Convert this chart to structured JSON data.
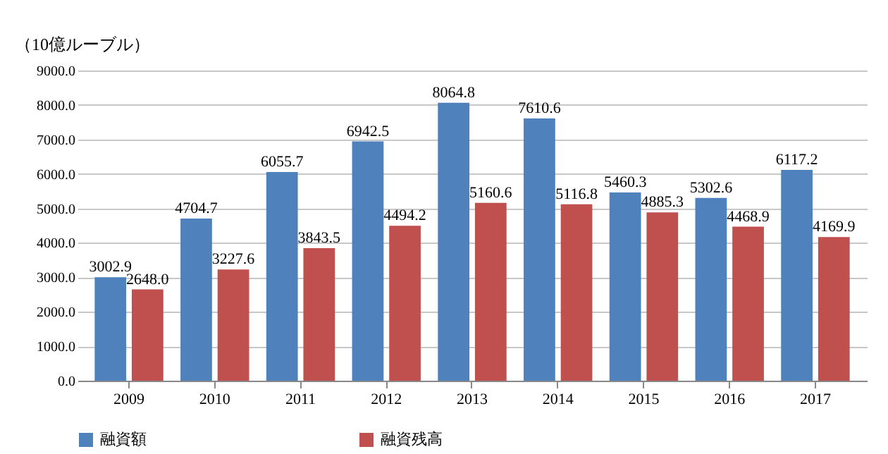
{
  "chart_data": {
    "type": "bar",
    "ylabel": "（10億ルーブル）",
    "categories": [
      "2009",
      "2010",
      "2011",
      "2012",
      "2013",
      "2014",
      "2015",
      "2016",
      "2017"
    ],
    "series": [
      {
        "name": "融資額",
        "color": "#4f81bd",
        "values": [
          3002.9,
          4704.7,
          6055.7,
          6942.5,
          8064.8,
          7610.6,
          5460.3,
          5302.6,
          6117.2
        ],
        "value_labels": [
          "3002.9",
          "4704.7",
          "6055.7",
          "6942.5",
          "8064.8",
          "7610.6",
          "5460.3",
          "5302.6",
          "6117.2"
        ]
      },
      {
        "name": "融資残高",
        "color": "#c0504d",
        "values": [
          2648,
          3227.6,
          3843.5,
          4494.2,
          5160.6,
          5116.8,
          4885.3,
          4468.9,
          4169.9
        ],
        "value_labels": [
          "2648.0",
          "3227.6",
          "3843.5",
          "4494.2",
          "5160.6",
          "5116.8",
          "4885.3",
          "4468.9",
          "4169.9"
        ]
      }
    ],
    "ylim": [
      0,
      9000
    ],
    "yticks": [
      {
        "value": 0,
        "label": "0.0"
      },
      {
        "value": 1000,
        "label": "1000.0"
      },
      {
        "value": 2000,
        "label": "2000.0"
      },
      {
        "value": 3000,
        "label": "3000.0"
      },
      {
        "value": 4000,
        "label": "4000.0"
      },
      {
        "value": 5000,
        "label": "5000.0"
      },
      {
        "value": 6000,
        "label": "6000.0"
      },
      {
        "value": 7000,
        "label": "7000.0"
      },
      {
        "value": 8000,
        "label": "8000.0"
      },
      {
        "value": 9000,
        "label": "9000.0"
      }
    ],
    "grid": "y",
    "legend": "bottom"
  }
}
